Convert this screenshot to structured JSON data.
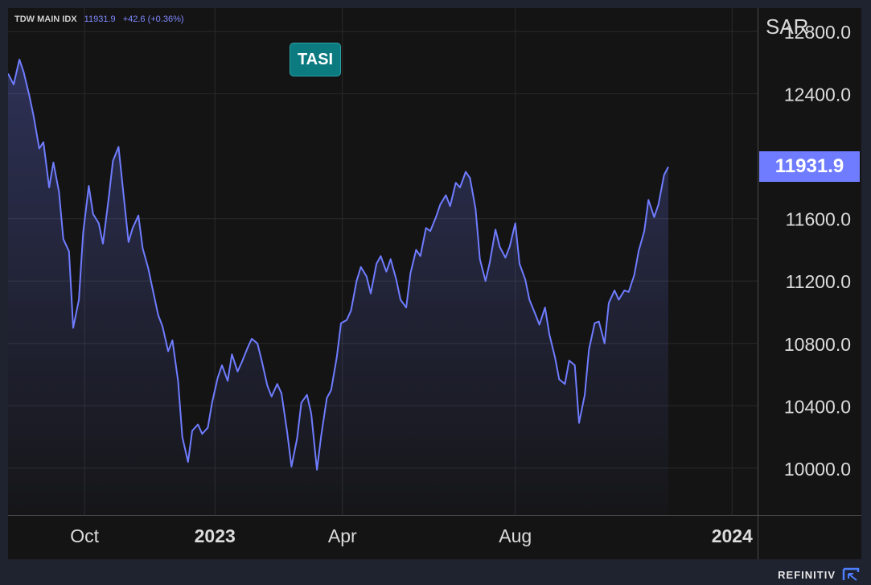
{
  "header": {
    "symbol": "TDW MAIN IDX",
    "last": "11931.9",
    "change": "+42.6 (+0.36%)"
  },
  "badge": {
    "label": "TASI"
  },
  "axis": {
    "currency": "SAR"
  },
  "last_price_label": "11931.9",
  "brand": {
    "name": "REFINITIV"
  },
  "colors": {
    "line": "#6f7cff",
    "badge": "#0b7b80",
    "background": "#141414",
    "grid": "#2a2a2a"
  },
  "chart_data": {
    "type": "area",
    "ylabel": "SAR",
    "ylim": [
      9700,
      12950
    ],
    "y_ticks": [
      "10000.0",
      "10400.0",
      "10800.0",
      "11200.0",
      "11600.0",
      "12400.0",
      "12800.0"
    ],
    "x_ticks": [
      {
        "label": "Oct",
        "date": "2022-10-01",
        "bold": false
      },
      {
        "label": "2023",
        "date": "2023-01-01",
        "bold": true
      },
      {
        "label": "Apr",
        "date": "2023-04-01",
        "bold": false
      },
      {
        "label": "Aug",
        "date": "2023-08-01",
        "bold": false
      },
      {
        "label": "2024",
        "date": "2024-01-01",
        "bold": true
      }
    ],
    "x_range": [
      "2022-08-08",
      "2024-01-19"
    ],
    "grid": true,
    "series": [
      {
        "last_value": 11931.9,
        "points": [
          [
            "2022-08-08",
            12530
          ],
          [
            "2022-08-12",
            12460
          ],
          [
            "2022-08-16",
            12620
          ],
          [
            "2022-08-19",
            12540
          ],
          [
            "2022-08-23",
            12390
          ],
          [
            "2022-08-26",
            12260
          ],
          [
            "2022-08-30",
            12050
          ],
          [
            "2022-09-02",
            12090
          ],
          [
            "2022-09-06",
            11800
          ],
          [
            "2022-09-09",
            11960
          ],
          [
            "2022-09-13",
            11770
          ],
          [
            "2022-09-16",
            11470
          ],
          [
            "2022-09-20",
            11390
          ],
          [
            "2022-09-23",
            10900
          ],
          [
            "2022-09-27",
            11080
          ],
          [
            "2022-09-30",
            11510
          ],
          [
            "2022-10-04",
            11810
          ],
          [
            "2022-10-07",
            11630
          ],
          [
            "2022-10-11",
            11570
          ],
          [
            "2022-10-14",
            11440
          ],
          [
            "2022-10-18",
            11730
          ],
          [
            "2022-10-21",
            11970
          ],
          [
            "2022-10-25",
            12060
          ],
          [
            "2022-10-28",
            11800
          ],
          [
            "2022-11-01",
            11450
          ],
          [
            "2022-11-04",
            11540
          ],
          [
            "2022-11-08",
            11620
          ],
          [
            "2022-11-11",
            11410
          ],
          [
            "2022-11-15",
            11280
          ],
          [
            "2022-11-18",
            11150
          ],
          [
            "2022-11-22",
            10980
          ],
          [
            "2022-11-25",
            10910
          ],
          [
            "2022-11-29",
            10750
          ],
          [
            "2022-12-02",
            10820
          ],
          [
            "2022-12-06",
            10560
          ],
          [
            "2022-12-09",
            10200
          ],
          [
            "2022-12-13",
            10040
          ],
          [
            "2022-12-16",
            10240
          ],
          [
            "2022-12-20",
            10280
          ],
          [
            "2022-12-23",
            10220
          ],
          [
            "2022-12-27",
            10260
          ],
          [
            "2022-12-30",
            10420
          ],
          [
            "2023-01-03",
            10580
          ],
          [
            "2023-01-06",
            10660
          ],
          [
            "2023-01-10",
            10560
          ],
          [
            "2023-01-13",
            10730
          ],
          [
            "2023-01-17",
            10620
          ],
          [
            "2023-01-20",
            10680
          ],
          [
            "2023-01-24",
            10770
          ],
          [
            "2023-01-27",
            10830
          ],
          [
            "2023-01-31",
            10800
          ],
          [
            "2023-02-03",
            10690
          ],
          [
            "2023-02-07",
            10530
          ],
          [
            "2023-02-10",
            10460
          ],
          [
            "2023-02-14",
            10540
          ],
          [
            "2023-02-17",
            10480
          ],
          [
            "2023-02-21",
            10230
          ],
          [
            "2023-02-24",
            10010
          ],
          [
            "2023-02-28",
            10190
          ],
          [
            "2023-03-03",
            10420
          ],
          [
            "2023-03-07",
            10470
          ],
          [
            "2023-03-10",
            10350
          ],
          [
            "2023-03-14",
            9990
          ],
          [
            "2023-03-17",
            10210
          ],
          [
            "2023-03-21",
            10450
          ],
          [
            "2023-03-24",
            10500
          ],
          [
            "2023-03-28",
            10710
          ],
          [
            "2023-03-31",
            10930
          ],
          [
            "2023-04-04",
            10950
          ],
          [
            "2023-04-07",
            11010
          ],
          [
            "2023-04-11",
            11200
          ],
          [
            "2023-04-14",
            11290
          ],
          [
            "2023-04-18",
            11230
          ],
          [
            "2023-04-21",
            11120
          ],
          [
            "2023-04-25",
            11310
          ],
          [
            "2023-04-28",
            11360
          ],
          [
            "2023-05-02",
            11260
          ],
          [
            "2023-05-05",
            11340
          ],
          [
            "2023-05-09",
            11210
          ],
          [
            "2023-05-12",
            11080
          ],
          [
            "2023-05-16",
            11030
          ],
          [
            "2023-05-19",
            11250
          ],
          [
            "2023-05-23",
            11400
          ],
          [
            "2023-05-26",
            11360
          ],
          [
            "2023-05-30",
            11540
          ],
          [
            "2023-06-02",
            11520
          ],
          [
            "2023-06-06",
            11610
          ],
          [
            "2023-06-09",
            11690
          ],
          [
            "2023-06-13",
            11750
          ],
          [
            "2023-06-16",
            11680
          ],
          [
            "2023-06-20",
            11830
          ],
          [
            "2023-06-23",
            11800
          ],
          [
            "2023-06-27",
            11900
          ],
          [
            "2023-06-30",
            11860
          ],
          [
            "2023-07-04",
            11660
          ],
          [
            "2023-07-07",
            11340
          ],
          [
            "2023-07-11",
            11200
          ],
          [
            "2023-07-14",
            11320
          ],
          [
            "2023-07-18",
            11530
          ],
          [
            "2023-07-21",
            11420
          ],
          [
            "2023-07-25",
            11350
          ],
          [
            "2023-07-28",
            11420
          ],
          [
            "2023-08-01",
            11570
          ],
          [
            "2023-08-04",
            11310
          ],
          [
            "2023-08-08",
            11210
          ],
          [
            "2023-08-11",
            11080
          ],
          [
            "2023-08-15",
            10990
          ],
          [
            "2023-08-18",
            10920
          ],
          [
            "2023-08-22",
            11030
          ],
          [
            "2023-08-25",
            10860
          ],
          [
            "2023-08-29",
            10710
          ],
          [
            "2023-09-01",
            10570
          ],
          [
            "2023-09-05",
            10540
          ],
          [
            "2023-09-08",
            10690
          ],
          [
            "2023-09-12",
            10660
          ],
          [
            "2023-09-15",
            10290
          ],
          [
            "2023-09-19",
            10470
          ],
          [
            "2023-09-22",
            10760
          ],
          [
            "2023-09-26",
            10930
          ],
          [
            "2023-09-29",
            10940
          ],
          [
            "2023-10-03",
            10800
          ],
          [
            "2023-10-06",
            11060
          ],
          [
            "2023-10-10",
            11140
          ],
          [
            "2023-10-13",
            11080
          ],
          [
            "2023-10-17",
            11140
          ],
          [
            "2023-10-20",
            11130
          ],
          [
            "2023-10-24",
            11240
          ],
          [
            "2023-10-27",
            11390
          ],
          [
            "2023-10-31",
            11520
          ],
          [
            "2023-11-03",
            11720
          ],
          [
            "2023-11-07",
            11610
          ],
          [
            "2023-11-10",
            11690
          ],
          [
            "2023-11-14",
            11880
          ],
          [
            "2023-11-17",
            11931.9
          ]
        ]
      }
    ]
  }
}
